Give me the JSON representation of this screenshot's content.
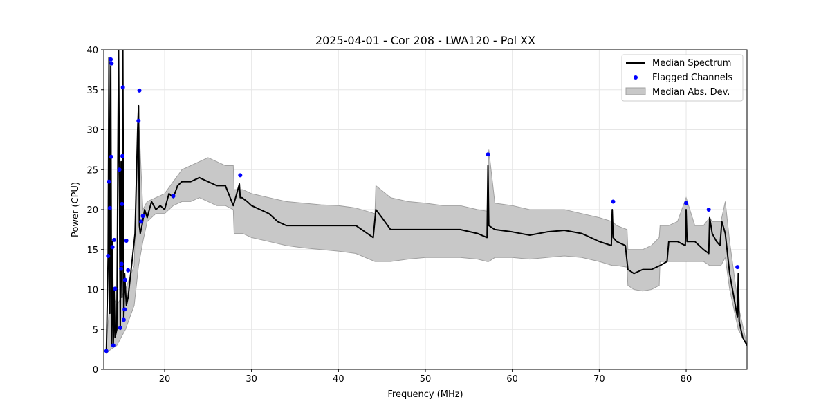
{
  "chart_data": {
    "type": "line",
    "title": "2025-04-01 - Cor 208 - LWA120 - Pol XX",
    "xlabel": "Frequency (MHz)",
    "ylabel": "Power (CPU)",
    "xlim": [
      13,
      87
    ],
    "ylim": [
      0,
      40
    ],
    "xticks": [
      20,
      30,
      40,
      50,
      60,
      70,
      80
    ],
    "yticks": [
      0,
      5,
      10,
      15,
      20,
      25,
      30,
      35,
      40
    ],
    "grid": true,
    "legend_position": "top-right",
    "legend": [
      "Median Spectrum",
      "Flagged Channels",
      "Median Abs. Dev."
    ],
    "colors": {
      "line": "#000000",
      "flagged": "#0000ff",
      "band_fill": "#c8c8c8",
      "band_edge": "#a0a0a0",
      "grid": "#e6e6e6"
    },
    "series": [
      {
        "name": "Median Spectrum",
        "x": [
          13.3,
          13.5,
          13.6,
          13.7,
          13.8,
          13.9,
          14.0,
          14.1,
          14.2,
          14.3,
          14.5,
          14.7,
          14.9,
          15.0,
          15.1,
          15.2,
          15.3,
          15.4,
          15.6,
          15.8,
          16.0,
          16.3,
          16.6,
          16.9,
          17.0,
          17.1,
          17.2,
          17.4,
          17.7,
          18.0,
          18.5,
          19.0,
          19.5,
          20.0,
          20.5,
          21.0,
          21.5,
          22.0,
          23.0,
          24.0,
          25.0,
          26.0,
          27.0,
          27.9,
          28.3,
          28.6,
          28.7,
          28.9,
          29.5,
          30.0,
          31.0,
          32.0,
          33.0,
          34.0,
          36.0,
          38.0,
          40.0,
          42.0,
          44.0,
          44.3,
          45.0,
          46.0,
          48.0,
          50.0,
          52.0,
          54.0,
          56.0,
          57.1,
          57.2,
          57.3,
          58.0,
          60.0,
          62.0,
          64.0,
          66.0,
          68.0,
          70.0,
          71.4,
          71.5,
          71.6,
          72.0,
          73.0,
          73.3,
          74.0,
          75.0,
          76.0,
          77.0,
          77.8,
          78.0,
          79.0,
          79.9,
          80.0,
          80.1,
          81.0,
          82.0,
          82.6,
          82.7,
          83.0,
          83.5,
          83.9,
          84.1,
          84.5,
          85.0,
          85.5,
          85.9,
          86.0,
          86.1,
          86.5,
          87.0
        ],
        "y": [
          2.5,
          14,
          39,
          7,
          38,
          3,
          16,
          3,
          10,
          4,
          5,
          40,
          5,
          26,
          9,
          40,
          6,
          12,
          8,
          9,
          11,
          14,
          17,
          30,
          33,
          18,
          17,
          18,
          20,
          19,
          21,
          20,
          20.5,
          20,
          22,
          21.5,
          23,
          23.5,
          23.5,
          24,
          23.5,
          23,
          23,
          20.5,
          22,
          23.2,
          21.5,
          21.5,
          21,
          20.5,
          20,
          19.5,
          18.5,
          18,
          18,
          18,
          18,
          18,
          16.5,
          20,
          19,
          17.5,
          17.5,
          17.5,
          17.5,
          17.5,
          17,
          16.5,
          25.5,
          18,
          17.5,
          17.2,
          16.8,
          17.2,
          17.4,
          17,
          16,
          15.5,
          20,
          16.5,
          16,
          15.5,
          12.5,
          12,
          12.5,
          12.5,
          13,
          13.5,
          16,
          16,
          15.5,
          20,
          16,
          16,
          15,
          14.5,
          19,
          17,
          16,
          15.5,
          18.5,
          17,
          12,
          9,
          6.5,
          12,
          6,
          4,
          3
        ]
      },
      {
        "name": "Median Abs. Dev.",
        "x": [
          13.3,
          13.8,
          14.5,
          15.5,
          16.5,
          17.0,
          17.5,
          18.0,
          19.0,
          20.0,
          21.0,
          22.0,
          23.0,
          24.0,
          25.0,
          26.0,
          27.0,
          27.9,
          28.0,
          29.0,
          30.0,
          32.0,
          34.0,
          36.0,
          38.0,
          40.0,
          42.0,
          44.2,
          44.3,
          46.0,
          48.0,
          50.0,
          52.0,
          54.0,
          56.0,
          57.1,
          57.3,
          58.0,
          60.0,
          62.0,
          64.0,
          66.0,
          68.0,
          70.0,
          71.5,
          72.0,
          73.2,
          73.3,
          74.0,
          75.0,
          76.0,
          76.9,
          77.0,
          78.0,
          79.0,
          80.0,
          81.0,
          82.0,
          82.7,
          83.0,
          84.0,
          84.5,
          85.0,
          86.0,
          87.0
        ],
        "upper": [
          3,
          10,
          8,
          10,
          13,
          32,
          20,
          21,
          21.5,
          22,
          23.5,
          25,
          25.5,
          26,
          26.5,
          26,
          25.5,
          25.5,
          22.5,
          22.5,
          22,
          21.5,
          21,
          20.8,
          20.6,
          20.5,
          20.2,
          19.5,
          23,
          21.5,
          21,
          20.8,
          20.5,
          20.5,
          20,
          19.8,
          27.5,
          20.8,
          20.5,
          20,
          20,
          20,
          19.5,
          19,
          18.5,
          18,
          17.5,
          15,
          15,
          15,
          15.5,
          16.5,
          18,
          18,
          18.5,
          21.5,
          18,
          18,
          19,
          18.5,
          18.5,
          21,
          16,
          8,
          3
        ]
      },
      {
        "name": "Median Abs. Dev. lower",
        "x": [
          13.3,
          13.8,
          14.5,
          15.5,
          16.5,
          17.0,
          17.5,
          18.0,
          19.0,
          20.0,
          21.0,
          22.0,
          23.0,
          24.0,
          25.0,
          26.0,
          27.0,
          27.9,
          28.0,
          29.0,
          30.0,
          32.0,
          34.0,
          36.0,
          38.0,
          40.0,
          42.0,
          44.2,
          44.3,
          46.0,
          48.0,
          50.0,
          52.0,
          54.0,
          56.0,
          57.1,
          57.3,
          58.0,
          60.0,
          62.0,
          64.0,
          66.0,
          68.0,
          70.0,
          71.5,
          72.0,
          73.2,
          73.3,
          74.0,
          75.0,
          76.0,
          76.9,
          77.0,
          78.0,
          79.0,
          80.0,
          81.0,
          82.0,
          82.7,
          83.0,
          84.0,
          84.5,
          85.0,
          86.0,
          87.0
        ],
        "lower": [
          2,
          2.5,
          3,
          5,
          8,
          13,
          16,
          18.5,
          19.5,
          19.5,
          20.5,
          21,
          21,
          21.5,
          21,
          20.5,
          20.5,
          20,
          17,
          17,
          16.5,
          16,
          15.5,
          15.2,
          15,
          14.8,
          14.5,
          13.5,
          13.5,
          13.5,
          13.8,
          14,
          14,
          14,
          13.8,
          13.5,
          13.5,
          14,
          14,
          13.8,
          14,
          14.2,
          14,
          13.5,
          13,
          13,
          12.8,
          10.5,
          10,
          9.8,
          10,
          10.5,
          13.5,
          13.5,
          13.5,
          13.5,
          13.5,
          13.5,
          13,
          13,
          13,
          14,
          10,
          5,
          3
        ]
      }
    ],
    "flagged_channels": {
      "x": [
        13.3,
        13.5,
        13.6,
        13.7,
        13.8,
        13.85,
        13.9,
        14.0,
        14.1,
        14.2,
        14.3,
        14.8,
        14.9,
        15.0,
        15.05,
        15.1,
        15.15,
        15.2,
        15.3,
        15.4,
        15.45,
        15.6,
        15.8,
        17.0,
        17.1,
        17.3,
        17.5,
        21.0,
        28.7,
        57.2,
        71.6,
        80.0,
        82.6,
        85.9
      ],
      "y": [
        2.3,
        14.2,
        23.5,
        20.2,
        38.8,
        26.6,
        38.3,
        15.3,
        3.0,
        16.2,
        10.1,
        25.0,
        5.2,
        12.6,
        13.2,
        20.7,
        26.7,
        35.3,
        6.2,
        7.5,
        11.2,
        16.1,
        12.4,
        31.1,
        34.9,
        18.5,
        19.2,
        21.7,
        24.3,
        26.9,
        21.0,
        20.8,
        20.0,
        12.8
      ]
    }
  }
}
